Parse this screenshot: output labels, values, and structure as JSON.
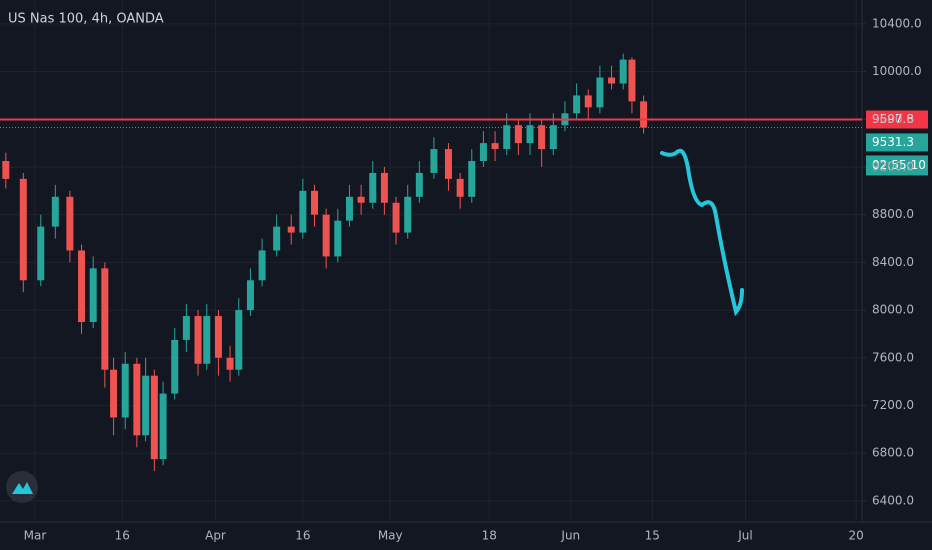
{
  "chart_data": {
    "type": "candlestick",
    "title": "US Nas 100, 4h, OANDA",
    "x": [
      -5,
      -2,
      1,
      3.5,
      6,
      8,
      10,
      12,
      13.5,
      15.5,
      17.5,
      19,
      20.5,
      22,
      24,
      26,
      28,
      29.5,
      31.5,
      33.5,
      35,
      37,
      39,
      41.5,
      44,
      46,
      48,
      50,
      52,
      54,
      56,
      58,
      60,
      62,
      64,
      66,
      68.5,
      71,
      73,
      75,
      77,
      79,
      81,
      83,
      85,
      87,
      89,
      91,
      93,
      95,
      97,
      99,
      101,
      102.5,
      104.5
    ],
    "open": [
      9250,
      9100,
      8250,
      8700,
      8950,
      8500,
      7900,
      8350,
      7500,
      7100,
      7550,
      6950,
      7450,
      6750,
      7300,
      7750,
      7950,
      7550,
      7950,
      7600,
      7500,
      8000,
      8250,
      8500,
      8700,
      8650,
      9000,
      8800,
      8450,
      8750,
      8950,
      8900,
      9150,
      8900,
      8650,
      8950,
      9150,
      9350,
      9100,
      8950,
      9250,
      9400,
      9350,
      9550,
      9400,
      9550,
      9350,
      9550,
      9650,
      9800,
      9700,
      9950,
      9900,
      10100,
      9750
    ],
    "high": [
      9320,
      9150,
      8800,
      9050,
      9000,
      8550,
      8450,
      8400,
      7600,
      7650,
      7600,
      7600,
      7500,
      7400,
      7850,
      8050,
      8000,
      8050,
      8000,
      7700,
      8100,
      8350,
      8600,
      8800,
      8800,
      9100,
      9050,
      8850,
      8850,
      9050,
      9050,
      9250,
      9200,
      8950,
      9050,
      9250,
      9450,
      9400,
      9150,
      9350,
      9500,
      9500,
      9650,
      9600,
      9650,
      9600,
      9650,
      9750,
      9900,
      9850,
      10050,
      10050,
      10150,
      10120,
      9800
    ],
    "low": [
      9020,
      8150,
      8200,
      8600,
      8400,
      7800,
      7850,
      7350,
      6950,
      7000,
      6850,
      6900,
      6650,
      6700,
      7250,
      7650,
      7450,
      7500,
      7450,
      7400,
      7450,
      7950,
      8200,
      8450,
      8550,
      8600,
      8700,
      8350,
      8400,
      8700,
      8800,
      8850,
      8800,
      8550,
      8600,
      8900,
      9100,
      9000,
      8850,
      8900,
      9200,
      9250,
      9300,
      9300,
      9300,
      9200,
      9300,
      9500,
      9600,
      9600,
      9650,
      9850,
      9850,
      9650,
      9480
    ],
    "close": [
      9100,
      8250,
      8700,
      8950,
      8500,
      7900,
      8350,
      7500,
      7100,
      7550,
      6950,
      7450,
      6750,
      7300,
      7750,
      7950,
      7550,
      7950,
      7600,
      7500,
      8000,
      8250,
      8500,
      8700,
      8650,
      9000,
      8800,
      8450,
      8750,
      8950,
      8900,
      9150,
      8900,
      8650,
      8950,
      9150,
      9350,
      9100,
      8950,
      9250,
      9400,
      9350,
      9550,
      9400,
      9550,
      9350,
      9550,
      9650,
      9800,
      9700,
      9950,
      9900,
      10100,
      9750,
      9531.3
    ],
    "up_color": "#26a69a",
    "down_color": "#ef5350",
    "xlim": [
      -6,
      142
    ],
    "xticks": [
      {
        "value": 0,
        "label": "Mar"
      },
      {
        "value": 15,
        "label": "16"
      },
      {
        "value": 31,
        "label": "Apr"
      },
      {
        "value": 46,
        "label": "16"
      },
      {
        "value": 61,
        "label": "May"
      },
      {
        "value": 78,
        "label": "18"
      },
      {
        "value": 92,
        "label": "Jun"
      },
      {
        "value": 106,
        "label": "15"
      },
      {
        "value": 122,
        "label": "Jul"
      },
      {
        "value": 141,
        "label": "20"
      }
    ],
    "ylim": [
      6240,
      10600
    ],
    "yticks": [
      {
        "value": 6400,
        "label": "6400.0"
      },
      {
        "value": 6800,
        "label": "6800.0"
      },
      {
        "value": 7200,
        "label": "7200.0"
      },
      {
        "value": 7600,
        "label": "7600.0"
      },
      {
        "value": 8000,
        "label": "8000.0"
      },
      {
        "value": 8400,
        "label": "8400.0"
      },
      {
        "value": 8800,
        "label": "8800.0"
      },
      {
        "value": 9200,
        "label": "9200.0"
      },
      {
        "value": 9600,
        "label": "9600.0"
      },
      {
        "value": 10000,
        "label": "10000.0"
      },
      {
        "value": 10400,
        "label": "10400.0"
      }
    ],
    "grid": true,
    "level_line": {
      "value": 9597.8,
      "color": "#f23645"
    },
    "price_line": {
      "value": 9531.3,
      "color": "#26a69a",
      "countdown": "02:55:10"
    }
  }
}
